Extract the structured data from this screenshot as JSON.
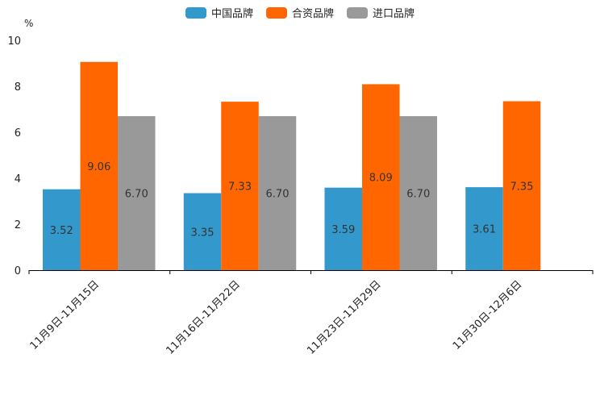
{
  "chart_data": {
    "type": "bar",
    "unit_label": "%",
    "categories": [
      "11月9日-11月15日",
      "11月16日-11月22日",
      "11月23日-11月29日",
      "11月30日-12月6日"
    ],
    "series": [
      {
        "name": "中国品牌",
        "color": "#3399CC",
        "values": [
          3.52,
          3.35,
          3.59,
          3.61
        ],
        "labels": [
          "3.52",
          "3.35",
          "3.59",
          "3.61"
        ]
      },
      {
        "name": "合资品牌",
        "color": "#FF6600",
        "values": [
          9.06,
          7.33,
          8.09,
          7.35
        ],
        "labels": [
          "9.06",
          "7.33",
          "8.09",
          "7.35"
        ]
      },
      {
        "name": "进口品牌",
        "color": "#999999",
        "values": [
          6.7,
          6.7,
          6.7,
          null
        ],
        "labels": [
          "6.70",
          "6.70",
          "6.70",
          null
        ]
      }
    ],
    "yticks": [
      "0",
      "2",
      "4",
      "6",
      "8",
      "10"
    ],
    "ylim": [
      0,
      10
    ],
    "xlabel": "",
    "ylabel": "%"
  }
}
